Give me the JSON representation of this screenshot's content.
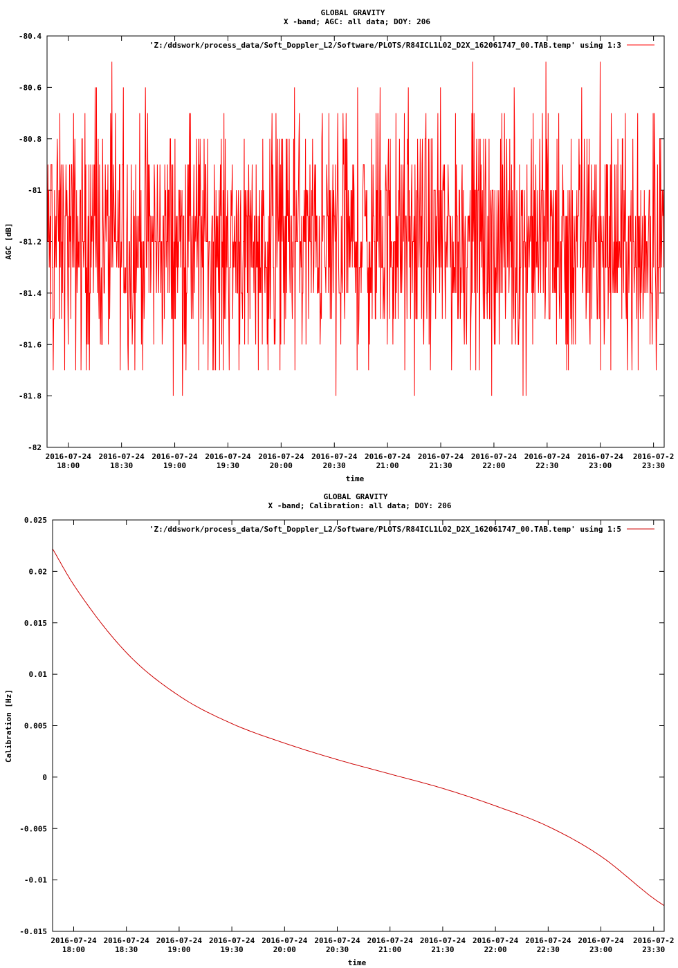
{
  "chart_data": [
    {
      "type": "line",
      "title": "GLOBAL GRAVITY",
      "subtitle": "X -band; AGC: all data; DOY: 206",
      "xlabel": "time",
      "ylabel": "AGC [dB]",
      "ylim": [
        -82,
        -80.4
      ],
      "yticks": [
        -82,
        -81.8,
        -81.6,
        -81.4,
        -81.2,
        -81,
        -80.8,
        -80.6,
        -80.4
      ],
      "ytick_labels": [
        "-82",
        "-81.8",
        "-81.6",
        "-81.4",
        "-81.2",
        "-81",
        "-80.8",
        "-80.6",
        "-80.4"
      ],
      "xlim": [
        "2016-07-24 17:48",
        "2016-07-24 23:36"
      ],
      "xticks": [
        "2016-07-24 18:00",
        "2016-07-24 18:30",
        "2016-07-24 19:00",
        "2016-07-24 19:30",
        "2016-07-24 20:00",
        "2016-07-24 20:30",
        "2016-07-24 21:00",
        "2016-07-24 21:30",
        "2016-07-24 22:00",
        "2016-07-24 22:30",
        "2016-07-24 23:00",
        "2016-07-24 23:30"
      ],
      "xtick_dates": [
        "2016-07-24",
        "2016-07-24",
        "2016-07-24",
        "2016-07-24",
        "2016-07-24",
        "2016-07-24",
        "2016-07-24",
        "2016-07-24",
        "2016-07-24",
        "2016-07-24",
        "2016-07-24",
        "2016-07-2"
      ],
      "xtick_times": [
        "18:00",
        "18:30",
        "19:00",
        "19:30",
        "20:00",
        "20:30",
        "21:00",
        "21:30",
        "22:00",
        "22:30",
        "23:00",
        "23:30"
      ],
      "grid": false,
      "legend_position": "top-right",
      "series": [
        {
          "name": "'Z:/ddswork/process_data/Soft_Doppler_L2/Software/PLOTS/R84ICL1L02_D2X_162061747_00.TAB.temp' using 1:3",
          "color": "#ff0000",
          "typical_range": [
            -81.5,
            -80.9
          ],
          "mean": -81.2,
          "min": -81.9,
          "max": -80.5
        }
      ]
    },
    {
      "type": "line",
      "title": "GLOBAL GRAVITY",
      "subtitle": "X -band; Calibration: all data; DOY: 206",
      "xlabel": "time",
      "ylabel": "Calibration [Hz]",
      "ylim": [
        -0.015,
        0.025
      ],
      "yticks": [
        -0.015,
        -0.01,
        -0.005,
        0,
        0.005,
        0.01,
        0.015,
        0.02,
        0.025
      ],
      "ytick_labels": [
        "-0.015",
        "-0.01",
        "-0.005",
        "0",
        "0.005",
        "0.01",
        "0.015",
        "0.02",
        "0.025"
      ],
      "xlim": [
        "2016-07-24 17:48",
        "2016-07-24 23:36"
      ],
      "xticks": [
        "2016-07-24 18:00",
        "2016-07-24 18:30",
        "2016-07-24 19:00",
        "2016-07-24 19:30",
        "2016-07-24 20:00",
        "2016-07-24 20:30",
        "2016-07-24 21:00",
        "2016-07-24 21:30",
        "2016-07-24 22:00",
        "2016-07-24 22:30",
        "2016-07-24 23:00",
        "2016-07-24 23:30"
      ],
      "xtick_dates": [
        "2016-07-24",
        "2016-07-24",
        "2016-07-24",
        "2016-07-24",
        "2016-07-24",
        "2016-07-24",
        "2016-07-24",
        "2016-07-24",
        "2016-07-24",
        "2016-07-24",
        "2016-07-24",
        "2016-07-2"
      ],
      "xtick_times": [
        "18:00",
        "18:30",
        "19:00",
        "19:30",
        "20:00",
        "20:30",
        "21:00",
        "21:30",
        "22:00",
        "22:30",
        "23:00",
        "23:30"
      ],
      "grid": false,
      "legend_position": "top-right",
      "series": [
        {
          "name": "'Z:/ddswork/process_data/Soft_Doppler_L2/Software/PLOTS/R84ICL1L02_D2X_162061747_00.TAB.temp' using 1:5",
          "color": "#cc0000",
          "x": [
            "2016-07-24 17:48",
            "2016-07-24 18:00",
            "2016-07-24 18:30",
            "2016-07-24 19:00",
            "2016-07-24 19:30",
            "2016-07-24 20:00",
            "2016-07-24 20:30",
            "2016-07-24 21:00",
            "2016-07-24 21:30",
            "2016-07-24 22:00",
            "2016-07-24 22:30",
            "2016-07-24 23:00",
            "2016-07-24 23:30",
            "2016-07-24 23:36"
          ],
          "values": [
            0.0222,
            0.0187,
            0.0121,
            0.0079,
            0.0052,
            0.0033,
            0.0017,
            0.0003,
            -0.0011,
            -0.0028,
            -0.0048,
            -0.0077,
            -0.0118,
            -0.0125
          ]
        }
      ]
    }
  ]
}
